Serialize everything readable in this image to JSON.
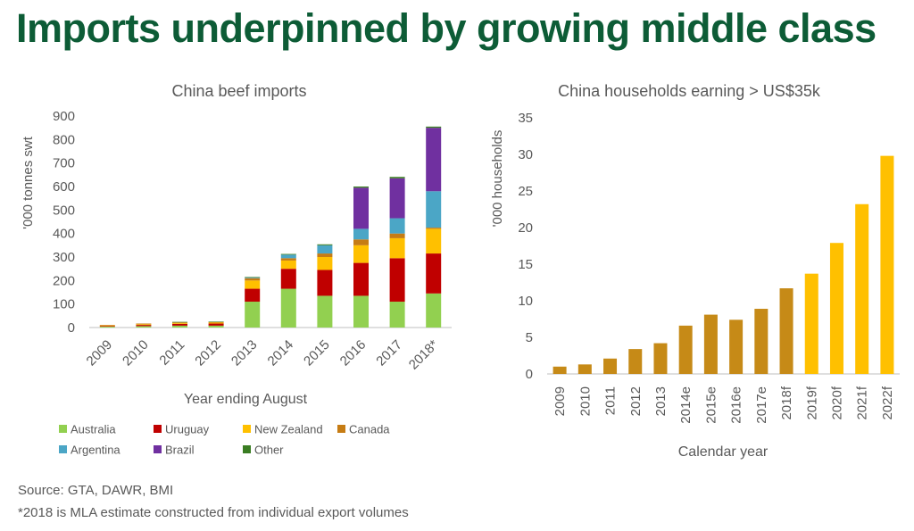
{
  "headline": "Imports underpinned by growing middle class",
  "footnotes": {
    "source": "Source: GTA, DAWR, BMI",
    "estimate_note": "*2018 is MLA estimate constructed from individual export volumes"
  },
  "chart_data": [
    {
      "type": "bar",
      "stacked": true,
      "title": "China beef imports",
      "xlabel": "Year ending August",
      "ylabel": "'000 tonnes swt",
      "ylim": [
        0,
        900
      ],
      "yticks": [
        0,
        100,
        200,
        300,
        400,
        500,
        600,
        700,
        800,
        900
      ],
      "grid": false,
      "legend_position": "bottom",
      "categories": [
        "2009",
        "2010",
        "2011",
        "2012",
        "2013",
        "2014",
        "2015",
        "2016",
        "2017",
        "2018*"
      ],
      "series": [
        {
          "name": "Australia",
          "color": "#92d050",
          "values": [
            4,
            6,
            8,
            8,
            110,
            165,
            135,
            135,
            110,
            145
          ]
        },
        {
          "name": "Uruguay",
          "color": "#c00000",
          "values": [
            3,
            5,
            8,
            9,
            55,
            85,
            110,
            140,
            185,
            170
          ]
        },
        {
          "name": "New Zealand",
          "color": "#ffc000",
          "values": [
            2,
            3,
            4,
            4,
            35,
            35,
            55,
            75,
            85,
            105
          ]
        },
        {
          "name": "Canada",
          "color": "#c67c14",
          "values": [
            2,
            3,
            3,
            3,
            10,
            10,
            15,
            25,
            20,
            5
          ]
        },
        {
          "name": "Argentina",
          "color": "#4ba6c6",
          "values": [
            0,
            0,
            0,
            0,
            3,
            15,
            35,
            45,
            65,
            155
          ]
        },
        {
          "name": "Brazil",
          "color": "#7030a0",
          "values": [
            0,
            0,
            0,
            0,
            0,
            0,
            0,
            175,
            170,
            270
          ]
        },
        {
          "name": "Other",
          "color": "#3a7d22",
          "values": [
            0,
            0,
            1,
            1,
            2,
            3,
            4,
            5,
            6,
            5
          ]
        }
      ]
    },
    {
      "type": "bar",
      "title": "China households earning > US$35k",
      "xlabel": "Calendar year",
      "ylabel": "'000 households",
      "ylim": [
        0,
        35
      ],
      "yticks": [
        0,
        5,
        10,
        15,
        20,
        25,
        30,
        35
      ],
      "grid": false,
      "categories": [
        "2009",
        "2010",
        "2011",
        "2012",
        "2013",
        "2014e",
        "2015e",
        "2016e",
        "2017e",
        "2018f",
        "2019f",
        "2020f",
        "2021f",
        "2022f"
      ],
      "values": [
        1,
        1.3,
        2.1,
        3.4,
        4.2,
        6.6,
        8.1,
        7.4,
        8.9,
        11.7,
        13.7,
        17.9,
        23.2,
        29.8
      ],
      "colors": {
        "actual_estimate": "#c68a17",
        "forecast": "#ffc000"
      },
      "forecast_from": "2019f"
    }
  ]
}
